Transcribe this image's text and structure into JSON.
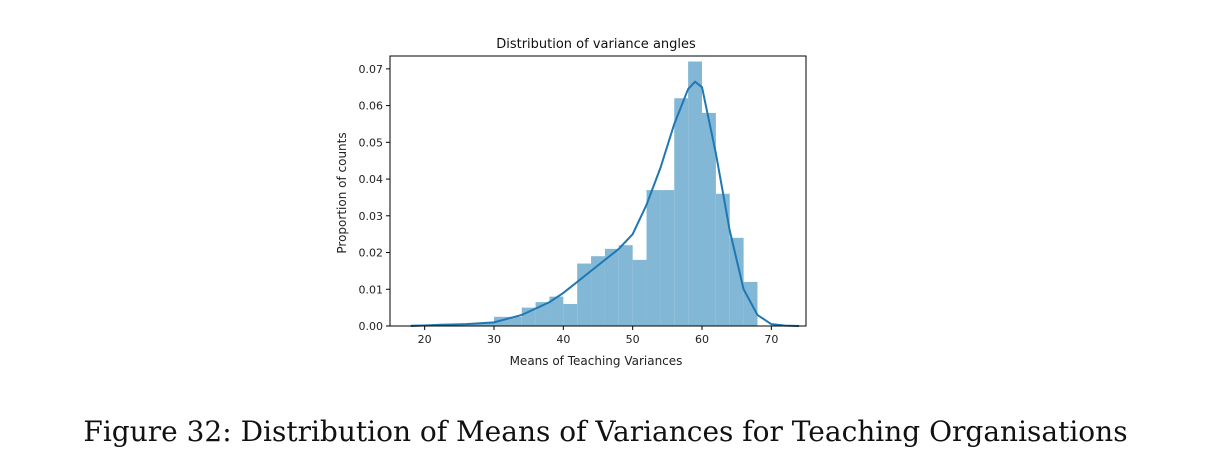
{
  "caption": "Figure 32: Distribution of Means of Variances for Teaching Organisations",
  "chart_data": {
    "type": "histogram",
    "title": "Distribution of variance angles",
    "xlabel": "Means of Teaching Variances",
    "ylabel": "Proportion of counts",
    "xlim": [
      15,
      75
    ],
    "ylim": [
      0,
      0.0735
    ],
    "xticks": [
      20,
      30,
      40,
      50,
      60,
      70
    ],
    "yticks": [
      0.0,
      0.01,
      0.02,
      0.03,
      0.04,
      0.05,
      0.06,
      0.07
    ],
    "bars": [
      {
        "x0": 18.0,
        "x1": 22.0,
        "height": 0.0004
      },
      {
        "x0": 22.0,
        "x1": 26.0,
        "height": 0.0006
      },
      {
        "x0": 26.0,
        "x1": 30.0,
        "height": 0.0008
      },
      {
        "x0": 30.0,
        "x1": 34.0,
        "height": 0.0025
      },
      {
        "x0": 34.0,
        "x1": 36.0,
        "height": 0.005
      },
      {
        "x0": 36.0,
        "x1": 38.0,
        "height": 0.0065
      },
      {
        "x0": 38.0,
        "x1": 40.0,
        "height": 0.008
      },
      {
        "x0": 40.0,
        "x1": 42.0,
        "height": 0.006
      },
      {
        "x0": 42.0,
        "x1": 44.0,
        "height": 0.017
      },
      {
        "x0": 44.0,
        "x1": 46.0,
        "height": 0.019
      },
      {
        "x0": 46.0,
        "x1": 48.0,
        "height": 0.021
      },
      {
        "x0": 48.0,
        "x1": 50.0,
        "height": 0.022
      },
      {
        "x0": 50.0,
        "x1": 52.0,
        "height": 0.018
      },
      {
        "x0": 52.0,
        "x1": 54.0,
        "height": 0.037
      },
      {
        "x0": 54.0,
        "x1": 56.0,
        "height": 0.037
      },
      {
        "x0": 56.0,
        "x1": 58.0,
        "height": 0.062
      },
      {
        "x0": 58.0,
        "x1": 60.0,
        "height": 0.072
      },
      {
        "x0": 60.0,
        "x1": 62.0,
        "height": 0.058
      },
      {
        "x0": 62.0,
        "x1": 64.0,
        "height": 0.036
      },
      {
        "x0": 64.0,
        "x1": 66.0,
        "height": 0.024
      },
      {
        "x0": 66.0,
        "x1": 68.0,
        "height": 0.012
      }
    ],
    "kde": {
      "x": [
        18,
        22,
        26,
        30,
        34,
        38,
        40,
        42,
        44,
        46,
        48,
        50,
        52,
        54,
        56,
        58,
        59,
        60,
        62,
        64,
        66,
        68,
        70,
        72,
        74
      ],
      "y": [
        0.0,
        0.0003,
        0.0005,
        0.001,
        0.003,
        0.0065,
        0.009,
        0.012,
        0.015,
        0.018,
        0.021,
        0.025,
        0.033,
        0.043,
        0.055,
        0.0645,
        0.0665,
        0.065,
        0.047,
        0.026,
        0.01,
        0.003,
        0.0005,
        0.0001,
        0.0
      ]
    },
    "colors": {
      "bar": "#82b7d6",
      "kde": "#1f77b4",
      "axis": "#000000"
    },
    "grid": false
  }
}
